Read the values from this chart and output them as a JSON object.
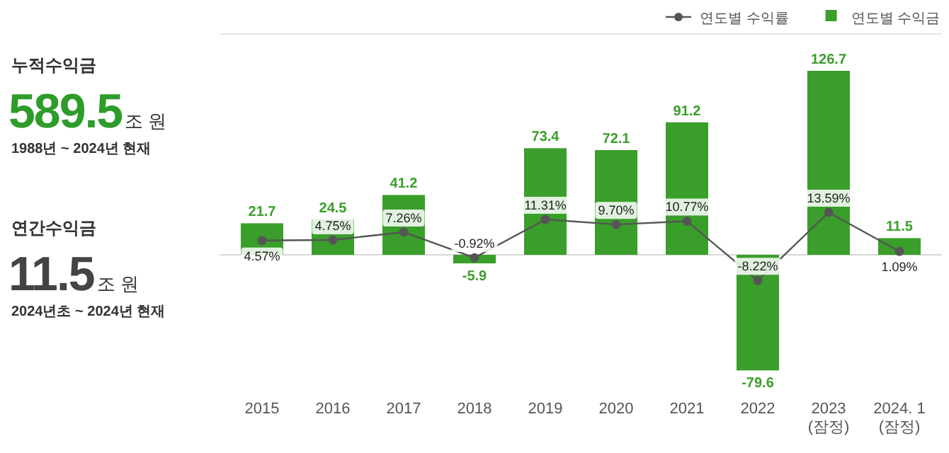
{
  "chart_data": [
    {
      "type": "other",
      "annotations": [
        "누적수익금",
        "589.5",
        "조 원",
        "1988년 ~ 2024년 현재",
        "연간수익금",
        "11.5",
        "조 원",
        "2024년초 ~ 2024년 현재"
      ]
    },
    {
      "type": "bar",
      "categories": [
        "2015",
        "2016",
        "2017",
        "2018",
        "2019",
        "2020",
        "2021",
        "2022",
        "2023\n(잠정)",
        "2024. 1\n(잠정)"
      ],
      "data_labels": true,
      "legend": "top right",
      "marker": "circle",
      "series": [
        {
          "name": "연도별 수익금",
          "type": "bar",
          "color": "#3a9e2a",
          "values": [
            21.7,
            24.5,
            41.2,
            -5.9,
            73.4,
            72.1,
            91.2,
            -79.6,
            126.7,
            11.5
          ]
        },
        {
          "name": "연도별 수익률",
          "type": "line",
          "axis": "y2",
          "color": "#555555",
          "values": [
            4.57,
            4.75,
            7.26,
            -0.92,
            11.31,
            9.7,
            10.77,
            -8.22,
            13.59,
            1.09
          ],
          "value_labels": [
            "4.57%",
            "4.75%",
            "7.26%",
            "-0.92%",
            "11.31%",
            "9.70%",
            "10.77%",
            "-8.22%",
            "13.59%",
            "1.09%"
          ]
        }
      ]
    }
  ]
}
